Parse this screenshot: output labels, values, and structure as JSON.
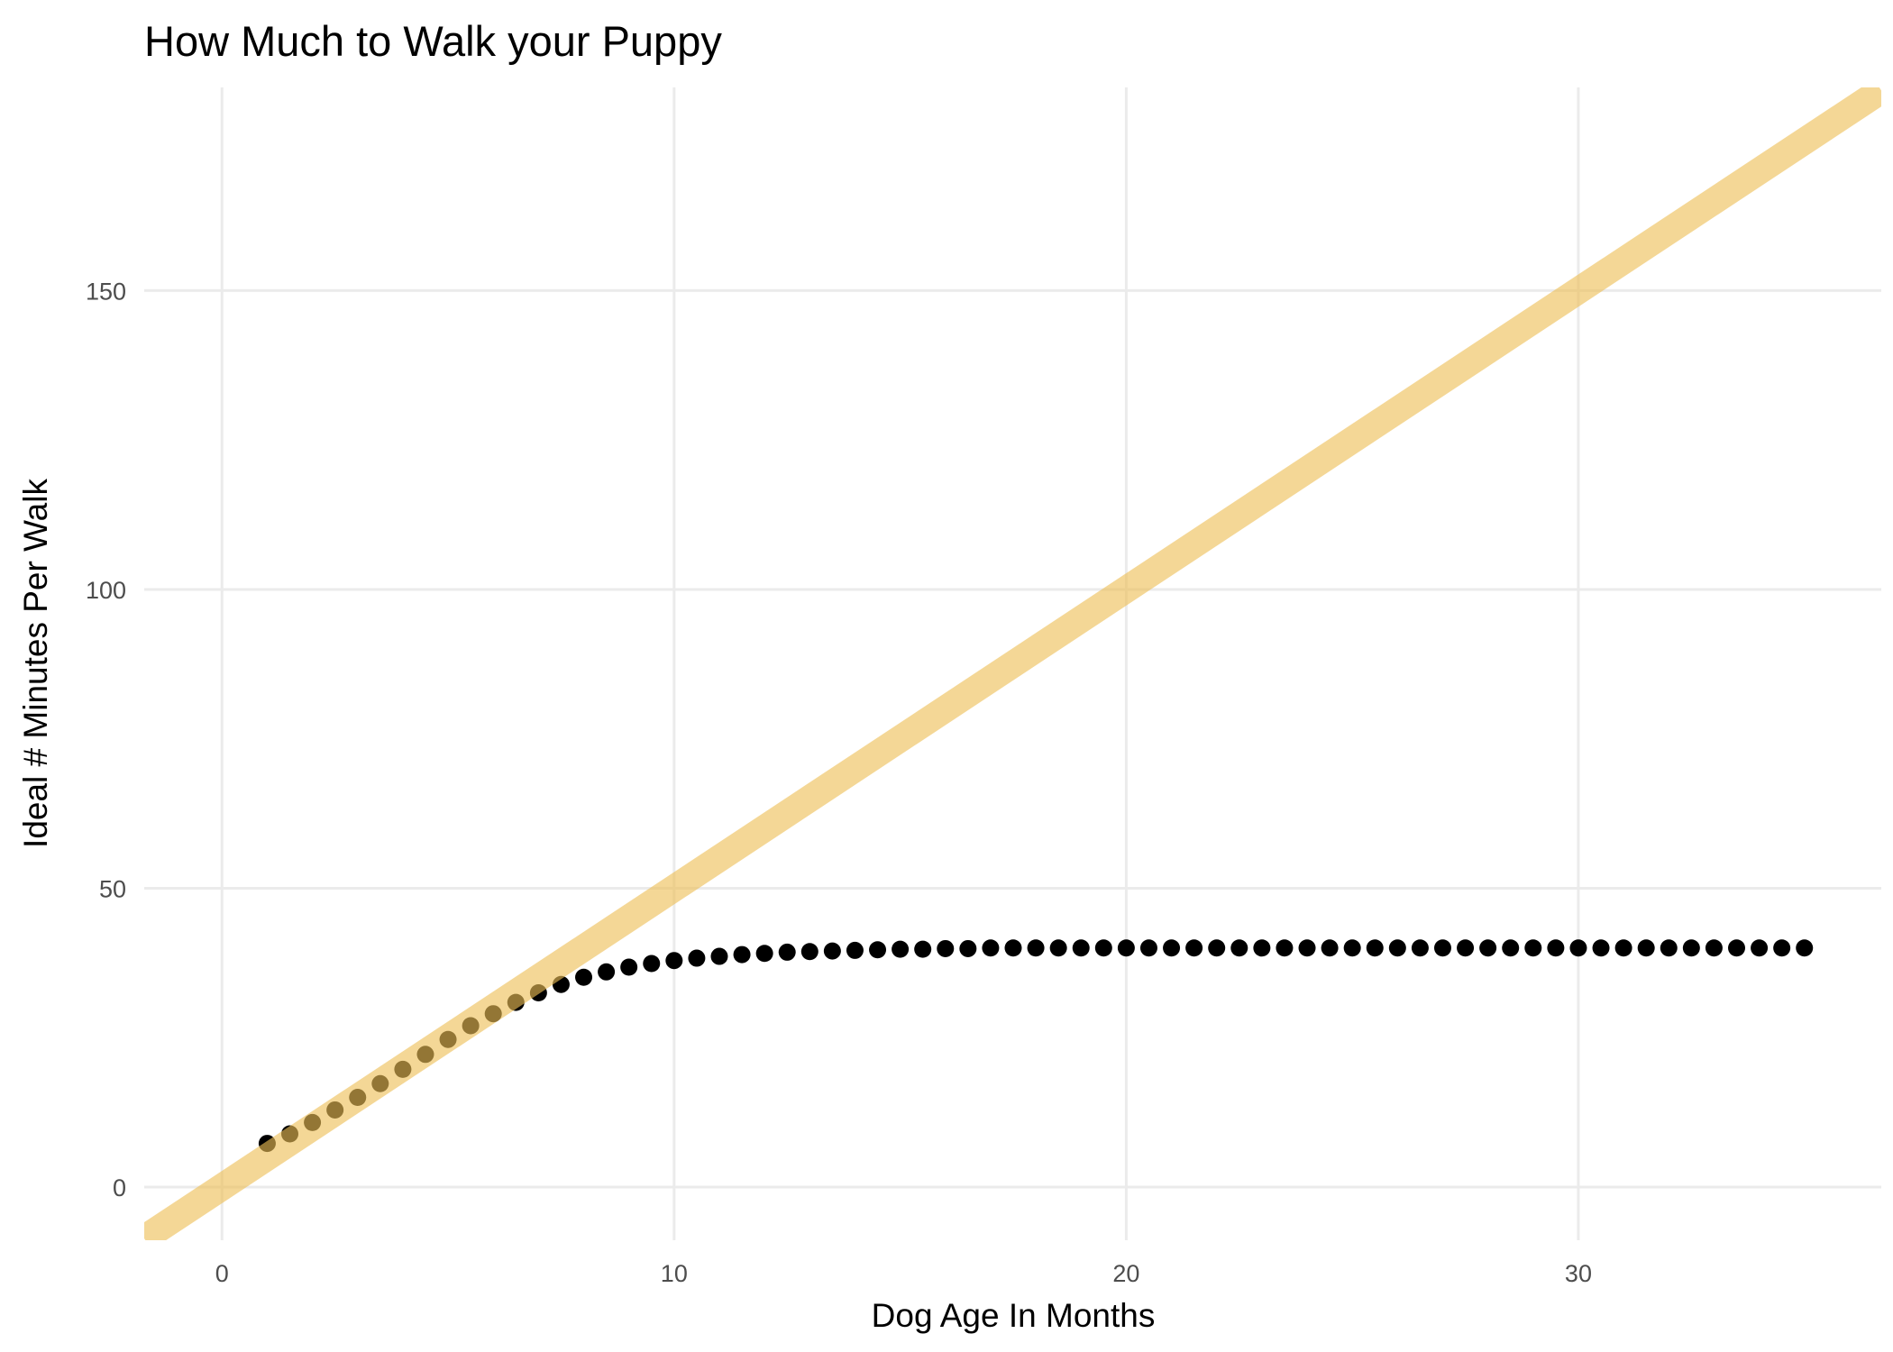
{
  "chart_data": {
    "type": "scatter",
    "title": "How Much to Walk your Puppy",
    "xlabel": "Dog Age In Months",
    "ylabel": "Ideal # Minutes Per Walk",
    "xlim": [
      -1.72,
      36.7
    ],
    "ylim": [
      -8.9,
      184
    ],
    "xticks": [
      0,
      10,
      20,
      30
    ],
    "yticks": [
      0,
      50,
      100,
      150
    ],
    "xtick_labels": [
      "0",
      "10",
      "20",
      "30"
    ],
    "ytick_labels": [
      "0",
      "50",
      "100",
      "150"
    ],
    "grid": true,
    "legend": "none",
    "colors": {
      "points": "#000000",
      "line": "#EDBE55",
      "grid": "#EBEBEB"
    },
    "series": [
      {
        "name": "points",
        "type": "scatter",
        "x": [
          1,
          1.5,
          2,
          2.5,
          3,
          3.5,
          4,
          4.5,
          5,
          5.5,
          6,
          6.5,
          7,
          7.5,
          8,
          8.5,
          9,
          9.5,
          10,
          10.5,
          11,
          11.5,
          12,
          12.5,
          13,
          13.5,
          14,
          14.5,
          15,
          15.5,
          16,
          16.5,
          17,
          17.5,
          18,
          18.5,
          19,
          19.5,
          20,
          20.5,
          21,
          21.5,
          22,
          22.5,
          23,
          23.5,
          24,
          24.5,
          25,
          25.5,
          26,
          26.5,
          27,
          27.5,
          28,
          28.5,
          29,
          29.5,
          30,
          30.5,
          31,
          31.5,
          32,
          32.5,
          33,
          33.5,
          34,
          34.5,
          35
        ],
        "y": [
          7.3,
          8.9,
          10.8,
          12.9,
          15.0,
          17.3,
          19.7,
          22.2,
          24.7,
          27.0,
          29.0,
          30.9,
          32.5,
          33.9,
          35.1,
          36.0,
          36.8,
          37.4,
          37.9,
          38.3,
          38.6,
          38.9,
          39.1,
          39.3,
          39.4,
          39.5,
          39.6,
          39.7,
          39.8,
          39.8,
          39.9,
          39.9,
          40,
          40,
          40,
          40,
          40,
          40,
          40,
          40,
          40,
          40,
          40,
          40,
          40,
          40,
          40,
          40,
          40,
          40,
          40,
          40,
          40,
          40,
          40,
          40,
          40,
          40,
          40,
          40,
          40,
          40,
          40,
          40,
          40,
          40,
          40,
          40,
          40
        ]
      },
      {
        "name": "reference-line",
        "type": "line",
        "slope": 5,
        "intercept": 0
      }
    ]
  }
}
